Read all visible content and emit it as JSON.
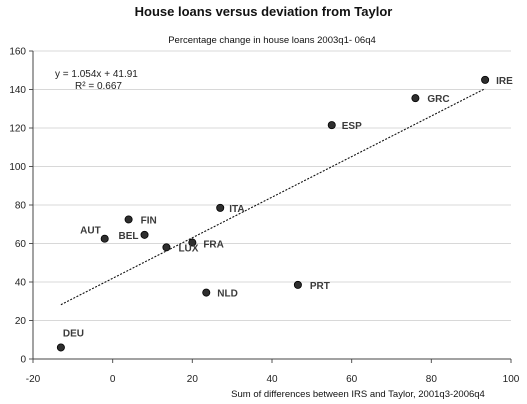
{
  "chart_data": {
    "type": "scatter",
    "title": "House loans versus deviation from Taylor",
    "subtitle": "Percentage change in house loans 2003q1- 06q4",
    "xlabel": "Sum of differences between IRS and Taylor, 2001q3-2006q4",
    "ylabel": "",
    "xlim": [
      -20,
      100
    ],
    "ylim": [
      0,
      160
    ],
    "xticks": [
      "-20",
      "0",
      "20",
      "40",
      "60",
      "80",
      "100"
    ],
    "yticks": [
      "0",
      "20",
      "40",
      "60",
      "80",
      "100",
      "120",
      "140",
      "160"
    ],
    "grid": "horizontal",
    "trendline": {
      "equation": "y = 1.054x + 41.91",
      "r2": "R² = 0.667",
      "slope": 1.054,
      "intercept": 41.91,
      "x_range": [
        -13,
        93.5
      ]
    },
    "points": [
      {
        "label": "IRE",
        "x": 93.5,
        "y": 145
      },
      {
        "label": "GRC",
        "x": 76,
        "y": 135.5
      },
      {
        "label": "ESP",
        "x": 55,
        "y": 121.5
      },
      {
        "label": "ITA",
        "x": 27,
        "y": 78.5
      },
      {
        "label": "FIN",
        "x": 4,
        "y": 72.5
      },
      {
        "label": "AUT",
        "x": -2,
        "y": 62.5
      },
      {
        "label": "BEL",
        "x": 8,
        "y": 64.5
      },
      {
        "label": "FRA",
        "x": 20,
        "y": 60.5
      },
      {
        "label": "LUX",
        "x": 13.5,
        "y": 58
      },
      {
        "label": "NLD",
        "x": 23.5,
        "y": 34.5
      },
      {
        "label": "PRT",
        "x": 46.5,
        "y": 38.5
      },
      {
        "label": "DEU",
        "x": -13,
        "y": 6
      }
    ]
  }
}
